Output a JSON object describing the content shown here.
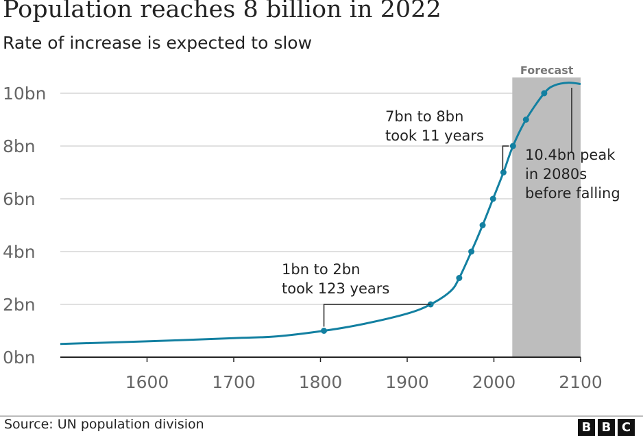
{
  "title": "Population reaches 8 billion in 2022",
  "subtitle": "Rate of increase is expected to slow",
  "source": "Source: UN population division",
  "logo": "BBC",
  "chart_data": {
    "type": "line",
    "xlim": [
      1500,
      2100
    ],
    "ylim": [
      0,
      10.4
    ],
    "x_ticks": [
      1600,
      1700,
      1800,
      1900,
      2000,
      2100
    ],
    "x_tick_labels": [
      "1600",
      "1700",
      "1800",
      "1900",
      "2000",
      "2100"
    ],
    "y_ticks": [
      0,
      2,
      4,
      6,
      8,
      10
    ],
    "y_tick_labels": [
      "0bn",
      "2bn",
      "4bn",
      "6bn",
      "8bn",
      "10bn"
    ],
    "grid": "horizontal",
    "line_color": "#1380A1",
    "forecast_band": {
      "label": "Forecast",
      "from": 2022,
      "to": 2100,
      "color": "#bdbdbd"
    },
    "line": {
      "x": [
        1500,
        1600,
        1700,
        1750,
        1804,
        1850,
        1900,
        1927,
        1950,
        1960,
        1974,
        1987,
        1999,
        2011,
        2022,
        2037,
        2058,
        2070,
        2086,
        2100
      ],
      "y": [
        0.5,
        0.6,
        0.72,
        0.79,
        1.0,
        1.26,
        1.65,
        2.0,
        2.5,
        3.0,
        4.0,
        5.0,
        6.0,
        7.0,
        8.0,
        9.0,
        10.0,
        10.3,
        10.4,
        10.35
      ]
    },
    "milestones": {
      "x": [
        1804,
        1927,
        1960,
        1974,
        1987,
        1999,
        2011,
        2022,
        2037,
        2058
      ],
      "y": [
        1,
        2,
        3,
        4,
        5,
        6,
        7,
        8,
        9,
        10
      ]
    },
    "annotations": [
      {
        "lines": [
          "1bn to 2bn",
          "took 123 years"
        ],
        "from": [
          1804,
          1
        ],
        "to": [
          1927,
          2
        ]
      },
      {
        "lines": [
          "7bn to 8bn",
          "took 11 years"
        ],
        "from": [
          2011,
          7
        ],
        "to": [
          2022,
          8
        ]
      },
      {
        "lines": [
          "10.4bn peak",
          "in 2080s",
          "before falling"
        ],
        "at": [
          2086,
          10.4
        ]
      }
    ]
  }
}
